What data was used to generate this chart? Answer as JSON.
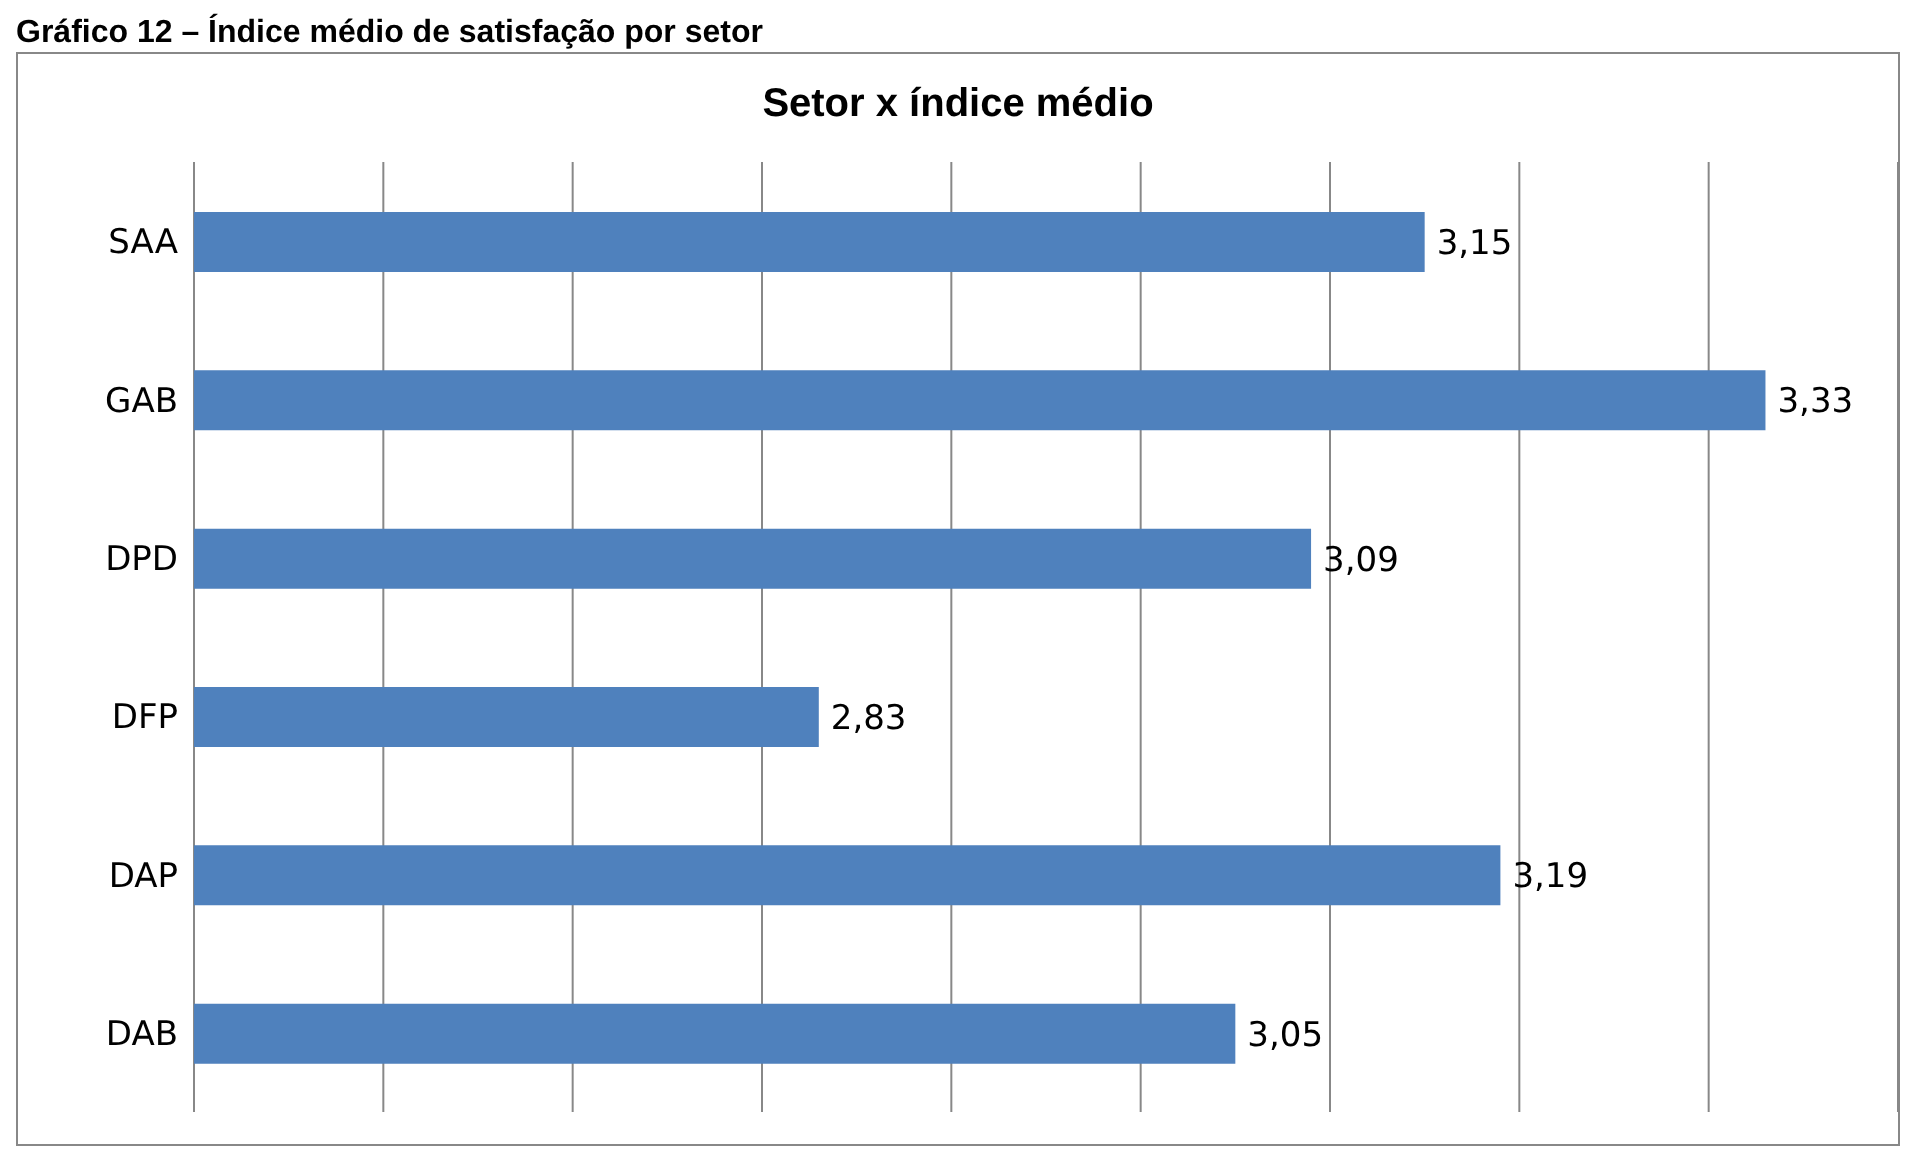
{
  "chart_data": {
    "type": "bar",
    "orientation": "horizontal",
    "title": "Setor x índice médio",
    "annotations": [
      "Gráfico 12 – Índice médio de satisfação por setor"
    ],
    "categories": [
      "SAA",
      "GAB",
      "DPD",
      "DFP",
      "DAP",
      "DAB"
    ],
    "values": [
      3.15,
      3.33,
      3.09,
      2.83,
      3.19,
      3.05
    ],
    "value_labels": [
      "3,15",
      "3,33",
      "3,09",
      "2,83",
      "3,19",
      "3,05"
    ],
    "color": "#4f81bd",
    "xlim": [
      2.5,
      3.4
    ],
    "tick_labels": "y",
    "grid": "x",
    "legend": false
  }
}
